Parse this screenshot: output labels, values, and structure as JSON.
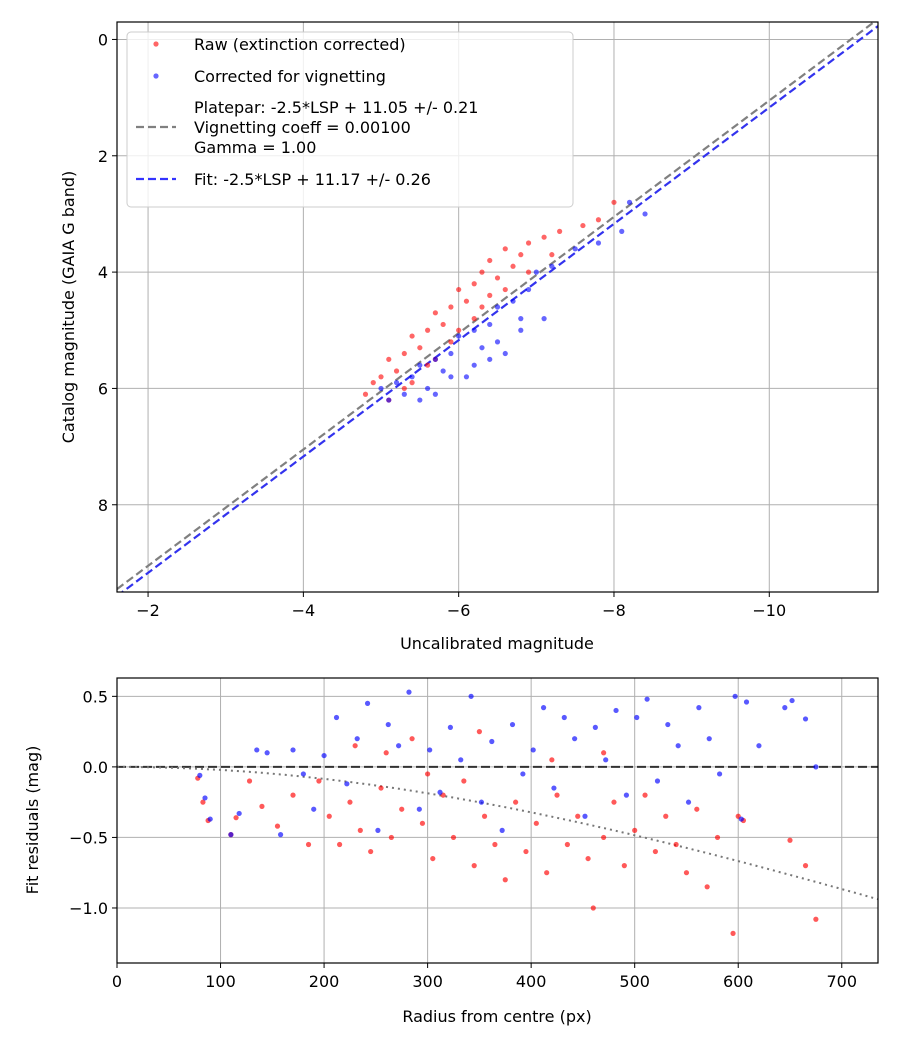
{
  "chart_data": [
    {
      "type": "scatter",
      "xlabel": "Uncalibrated magnitude",
      "ylabel": "Catalog magnitude (GAIA G band)",
      "xlim": [
        -1.6,
        -11.4
      ],
      "ylim": [
        9.5,
        -0.3
      ],
      "x_inverted": true,
      "y_inverted": true,
      "xticks": [
        -2,
        -4,
        -6,
        -8,
        -10
      ],
      "xtick_labels": [
        "−2",
        "−4",
        "−6",
        "−8",
        "−10"
      ],
      "yticks": [
        0,
        2,
        4,
        6,
        8
      ],
      "ytick_labels": [
        "0",
        "2",
        "4",
        "6",
        "8"
      ],
      "grid": true,
      "legend_position": "top-left",
      "legend": [
        {
          "label_lines": [
            "Raw (extinction corrected)"
          ],
          "kind": "scatter",
          "color": "#ff0000"
        },
        {
          "label_lines": [
            "Corrected for vignetting"
          ],
          "kind": "scatter",
          "color": "#0000ff"
        },
        {
          "label_lines": [
            "Platepar: -2.5*LSP + 11.05 +/- 0.21",
            "Vignetting coeff = 0.00100",
            "Gamma = 1.00"
          ],
          "kind": "dashed-line",
          "color": "#808080"
        },
        {
          "label_lines": [
            "Fit: -2.5*LSP + 11.17 +/- 0.26"
          ],
          "kind": "dashed-line",
          "color": "#0000ff"
        }
      ],
      "lines": [
        {
          "name": "Platepar: -2.5*LSP + 11.05 +/- 0.21",
          "slope": 1.0,
          "intercept": 11.05,
          "color": "#808080",
          "style": "dashed"
        },
        {
          "name": "Fit: -2.5*LSP + 11.17 +/- 0.26",
          "slope": 1.0,
          "intercept": 11.17,
          "color": "#3333ee",
          "style": "dashed"
        }
      ],
      "series": [
        {
          "name": "Raw (extinction corrected)",
          "color": "#ff0000",
          "points": [
            [
              -8.0,
              2.8
            ],
            [
              -7.8,
              3.1
            ],
            [
              -7.6,
              3.2
            ],
            [
              -7.3,
              3.3
            ],
            [
              -7.1,
              3.4
            ],
            [
              -6.9,
              3.5
            ],
            [
              -6.8,
              3.7
            ],
            [
              -6.6,
              3.6
            ],
            [
              -6.4,
              3.8
            ],
            [
              -6.7,
              3.9
            ],
            [
              -6.3,
              4.0
            ],
            [
              -6.5,
              4.1
            ],
            [
              -6.2,
              4.2
            ],
            [
              -6.0,
              4.3
            ],
            [
              -6.4,
              4.4
            ],
            [
              -6.1,
              4.5
            ],
            [
              -5.9,
              4.6
            ],
            [
              -5.7,
              4.7
            ],
            [
              -6.2,
              4.8
            ],
            [
              -5.8,
              4.9
            ],
            [
              -5.6,
              5.0
            ],
            [
              -5.4,
              5.1
            ],
            [
              -5.9,
              5.2
            ],
            [
              -5.5,
              5.3
            ],
            [
              -5.3,
              5.4
            ],
            [
              -5.1,
              5.5
            ],
            [
              -5.6,
              5.6
            ],
            [
              -5.2,
              5.7
            ],
            [
              -5.0,
              5.8
            ],
            [
              -4.9,
              5.9
            ],
            [
              -5.3,
              6.0
            ],
            [
              -4.8,
              6.1
            ],
            [
              -5.1,
              6.2
            ],
            [
              -5.4,
              5.9
            ],
            [
              -5.7,
              5.5
            ],
            [
              -6.0,
              5.0
            ],
            [
              -6.3,
              4.6
            ],
            [
              -6.6,
              4.3
            ],
            [
              -6.9,
              4.0
            ],
            [
              -7.2,
              3.7
            ]
          ]
        },
        {
          "name": "Corrected for vignetting",
          "color": "#0000ff",
          "points": [
            [
              -8.2,
              2.8
            ],
            [
              -8.4,
              3.0
            ],
            [
              -8.1,
              3.3
            ],
            [
              -7.8,
              3.5
            ],
            [
              -7.5,
              3.6
            ],
            [
              -7.2,
              3.9
            ],
            [
              -7.0,
              4.0
            ],
            [
              -6.9,
              4.3
            ],
            [
              -6.7,
              4.5
            ],
            [
              -6.5,
              4.6
            ],
            [
              -6.8,
              4.8
            ],
            [
              -6.4,
              4.9
            ],
            [
              -6.2,
              5.0
            ],
            [
              -6.0,
              5.1
            ],
            [
              -6.3,
              5.3
            ],
            [
              -5.9,
              5.4
            ],
            [
              -5.7,
              5.5
            ],
            [
              -5.5,
              5.6
            ],
            [
              -5.8,
              5.7
            ],
            [
              -5.4,
              5.8
            ],
            [
              -5.2,
              5.9
            ],
            [
              -5.0,
              6.0
            ],
            [
              -5.3,
              6.1
            ],
            [
              -5.1,
              6.2
            ],
            [
              -5.6,
              6.0
            ],
            [
              -5.9,
              5.8
            ],
            [
              -6.2,
              5.6
            ],
            [
              -6.5,
              5.2
            ],
            [
              -6.8,
              5.0
            ],
            [
              -7.1,
              4.8
            ],
            [
              -5.5,
              6.2
            ],
            [
              -5.7,
              6.1
            ],
            [
              -6.1,
              5.8
            ],
            [
              -6.4,
              5.5
            ],
            [
              -6.6,
              5.4
            ]
          ]
        }
      ]
    },
    {
      "type": "scatter",
      "xlabel": "Radius from centre (px)",
      "ylabel": "Fit residuals (mag)",
      "xlim": [
        0,
        735
      ],
      "ylim": [
        -1.39,
        0.63
      ],
      "xticks": [
        0,
        100,
        200,
        300,
        400,
        500,
        600,
        700
      ],
      "xtick_labels": [
        "0",
        "100",
        "200",
        "300",
        "400",
        "500",
        "600",
        "700"
      ],
      "yticks": [
        0.5,
        0.0,
        -0.5,
        -1.0
      ],
      "ytick_labels": [
        "0.5",
        "0.0",
        "−0.5",
        "−1.0"
      ],
      "grid": true,
      "reference_lines": [
        {
          "kind": "horizontal",
          "y": 0.0,
          "color": "#333333",
          "style": "dashed"
        },
        {
          "kind": "vignetting-curve",
          "coeff": 0.001,
          "color": "#777777",
          "style": "dotted"
        }
      ],
      "series": [
        {
          "name": "Raw (extinction corrected)",
          "color": "#ff0000",
          "points": [
            [
              78,
              -0.08
            ],
            [
              83,
              -0.25
            ],
            [
              88,
              -0.38
            ],
            [
              110,
              -0.48
            ],
            [
              115,
              -0.36
            ],
            [
              128,
              -0.1
            ],
            [
              140,
              -0.28
            ],
            [
              155,
              -0.42
            ],
            [
              170,
              -0.2
            ],
            [
              185,
              -0.55
            ],
            [
              195,
              -0.1
            ],
            [
              205,
              -0.35
            ],
            [
              215,
              -0.55
            ],
            [
              225,
              -0.25
            ],
            [
              235,
              -0.45
            ],
            [
              245,
              -0.6
            ],
            [
              255,
              -0.15
            ],
            [
              265,
              -0.5
            ],
            [
              275,
              -0.3
            ],
            [
              285,
              0.2
            ],
            [
              295,
              -0.4
            ],
            [
              305,
              -0.65
            ],
            [
              315,
              -0.2
            ],
            [
              325,
              -0.5
            ],
            [
              335,
              -0.1
            ],
            [
              345,
              -0.7
            ],
            [
              355,
              -0.35
            ],
            [
              365,
              -0.55
            ],
            [
              375,
              -0.8
            ],
            [
              385,
              -0.25
            ],
            [
              395,
              -0.6
            ],
            [
              405,
              -0.4
            ],
            [
              415,
              -0.75
            ],
            [
              425,
              -0.2
            ],
            [
              435,
              -0.55
            ],
            [
              445,
              -0.35
            ],
            [
              455,
              -0.65
            ],
            [
              460,
              -1.0
            ],
            [
              470,
              -0.5
            ],
            [
              480,
              -0.25
            ],
            [
              490,
              -0.7
            ],
            [
              500,
              -0.45
            ],
            [
              510,
              -0.2
            ],
            [
              520,
              -0.6
            ],
            [
              530,
              -0.35
            ],
            [
              540,
              -0.55
            ],
            [
              550,
              -0.75
            ],
            [
              560,
              -0.3
            ],
            [
              570,
              -0.85
            ],
            [
              580,
              -0.5
            ],
            [
              595,
              -1.18
            ],
            [
              600,
              -0.35
            ],
            [
              605,
              -0.38
            ],
            [
              650,
              -0.52
            ],
            [
              665,
              -0.7
            ],
            [
              675,
              -1.08
            ],
            [
              230,
              0.15
            ],
            [
              260,
              0.1
            ],
            [
              300,
              -0.05
            ],
            [
              350,
              0.25
            ],
            [
              420,
              0.05
            ],
            [
              470,
              0.1
            ]
          ]
        },
        {
          "name": "Corrected for vignetting",
          "color": "#0000ff",
          "points": [
            [
              80,
              -0.06
            ],
            [
              85,
              -0.22
            ],
            [
              90,
              -0.37
            ],
            [
              110,
              -0.48
            ],
            [
              118,
              -0.33
            ],
            [
              135,
              0.12
            ],
            [
              145,
              0.1
            ],
            [
              158,
              -0.48
            ],
            [
              170,
              0.12
            ],
            [
              180,
              -0.05
            ],
            [
              190,
              -0.3
            ],
            [
              200,
              0.08
            ],
            [
              212,
              0.35
            ],
            [
              222,
              -0.12
            ],
            [
              232,
              0.2
            ],
            [
              242,
              0.45
            ],
            [
              252,
              -0.45
            ],
            [
              262,
              0.3
            ],
            [
              272,
              0.15
            ],
            [
              282,
              0.53
            ],
            [
              292,
              -0.3
            ],
            [
              302,
              0.12
            ],
            [
              312,
              -0.18
            ],
            [
              322,
              0.28
            ],
            [
              332,
              0.05
            ],
            [
              342,
              0.5
            ],
            [
              352,
              -0.25
            ],
            [
              362,
              0.18
            ],
            [
              372,
              -0.45
            ],
            [
              382,
              0.3
            ],
            [
              392,
              -0.05
            ],
            [
              402,
              0.12
            ],
            [
              412,
              0.42
            ],
            [
              422,
              -0.15
            ],
            [
              432,
              0.35
            ],
            [
              442,
              0.2
            ],
            [
              452,
              -0.35
            ],
            [
              462,
              0.28
            ],
            [
              472,
              0.05
            ],
            [
              482,
              0.4
            ],
            [
              492,
              -0.2
            ],
            [
              502,
              0.35
            ],
            [
              512,
              0.48
            ],
            [
              522,
              -0.1
            ],
            [
              532,
              0.3
            ],
            [
              542,
              0.15
            ],
            [
              552,
              -0.25
            ],
            [
              562,
              0.42
            ],
            [
              572,
              0.2
            ],
            [
              582,
              -0.05
            ],
            [
              597,
              0.5
            ],
            [
              603,
              -0.37
            ],
            [
              608,
              0.46
            ],
            [
              620,
              0.15
            ],
            [
              645,
              0.42
            ],
            [
              652,
              0.47
            ],
            [
              665,
              0.34
            ],
            [
              675,
              0.0
            ]
          ]
        }
      ]
    }
  ]
}
